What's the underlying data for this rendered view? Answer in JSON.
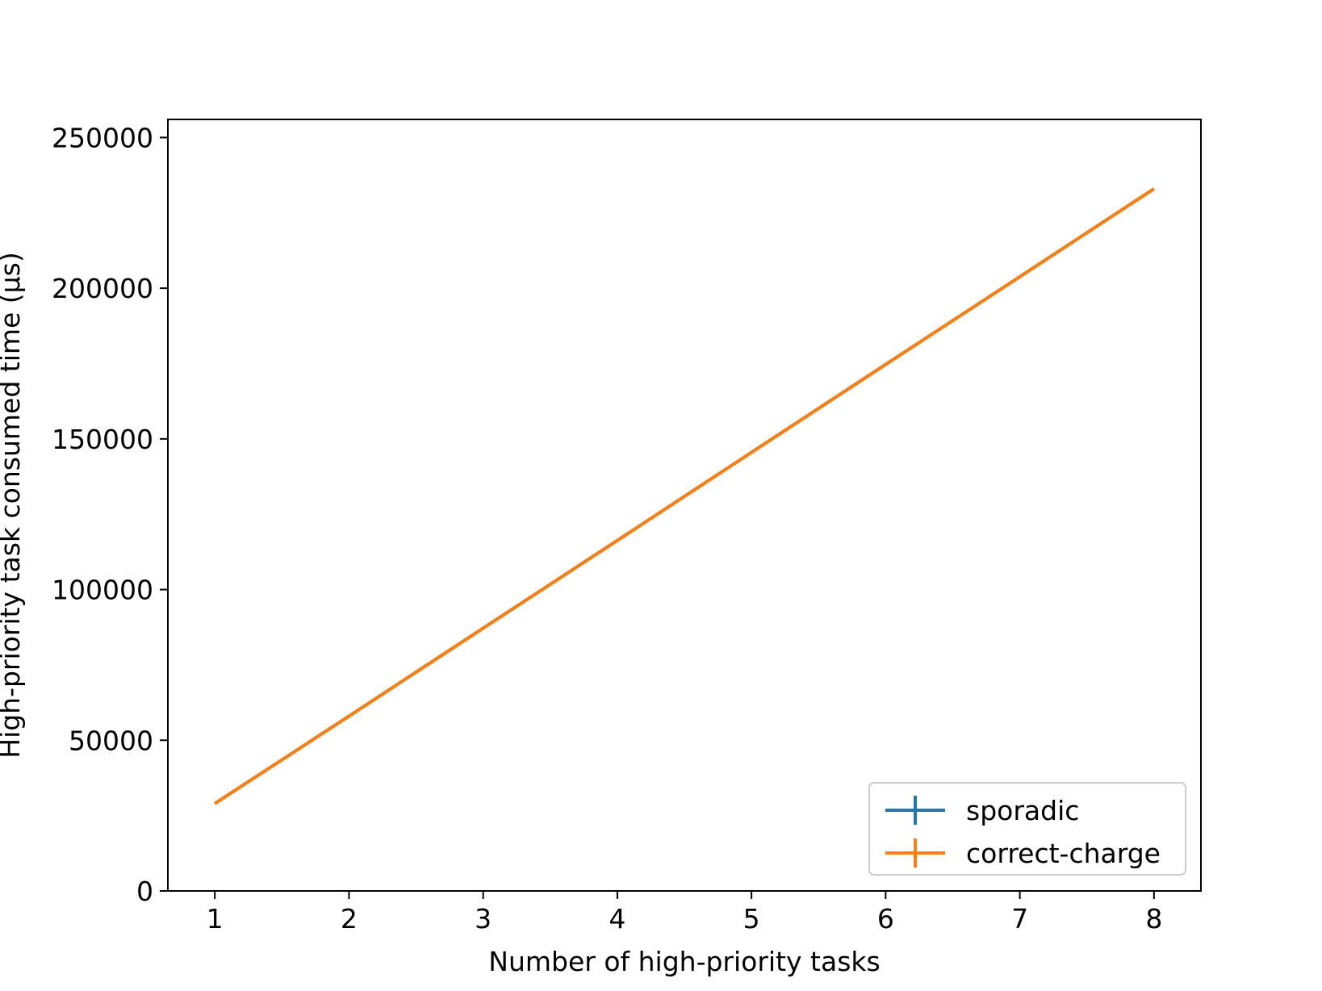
{
  "chart_data": {
    "type": "line",
    "title": "",
    "xlabel": "Number of high-priority tasks",
    "ylabel": "High-priority task consumed time (µs)",
    "x": [
      1,
      2,
      3,
      4,
      5,
      6,
      7,
      8
    ],
    "xlim": [
      0.65,
      8.35
    ],
    "ylim": [
      0,
      256000
    ],
    "xticks": [
      1,
      2,
      3,
      4,
      5,
      6,
      7,
      8
    ],
    "xtick_labels": [
      "1",
      "2",
      "3",
      "4",
      "5",
      "6",
      "7",
      "8"
    ],
    "yticks": [
      0,
      50000,
      100000,
      150000,
      200000,
      250000
    ],
    "ytick_labels": [
      "0",
      "50000",
      "100000",
      "150000",
      "200000",
      "250000"
    ],
    "grid": false,
    "legend_position": "lower-right",
    "series": [
      {
        "name": "sporadic",
        "color": "#1f77b4",
        "values": [
          29000,
          58000,
          87200,
          116300,
          145500,
          174700,
          203800,
          233000
        ]
      },
      {
        "name": "correct-charge",
        "color": "#ff7f0e",
        "values": [
          29000,
          58000,
          87200,
          116300,
          145500,
          174700,
          203800,
          233000
        ]
      }
    ]
  }
}
